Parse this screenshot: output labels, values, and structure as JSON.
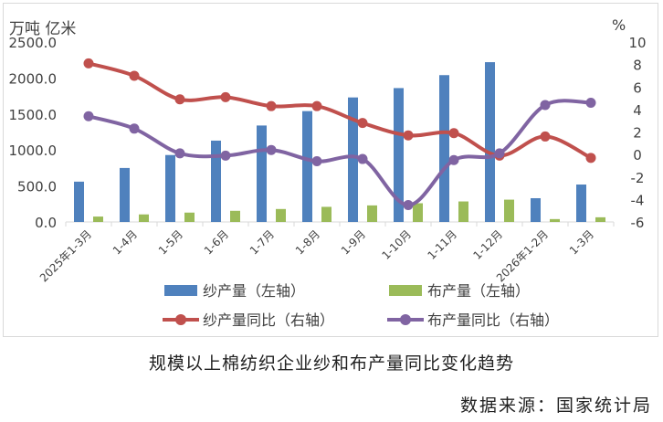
{
  "caption": "规模以上棉纺织企业纱和布产量同比变化趋势",
  "source": "数据来源：国家统计局",
  "chart_data": {
    "type": "bar+line",
    "categories": [
      "2025年1-3月",
      "1-4月",
      "1-5月",
      "1-6月",
      "1-7月",
      "1-8月",
      "1-9月",
      "1-10月",
      "1-11月",
      "1-12月",
      "2026年1-2月",
      "1-3月"
    ],
    "left_axis": {
      "unit_label": "万吨 亿米",
      "ylim": [
        0,
        2500
      ],
      "ticks": [
        "0.0",
        "500.0",
        "1000.0",
        "1500.0",
        "2000.0",
        "2500.0"
      ]
    },
    "right_axis": {
      "unit_label": "%",
      "ylim": [
        -6,
        10
      ],
      "ticks": [
        "-6",
        "-4",
        "-2",
        "0",
        "2",
        "4",
        "6",
        "8",
        "10"
      ]
    },
    "bar_series": [
      {
        "name": "纱产量（左轴）",
        "color": "#4f81bd",
        "values": [
          560,
          750,
          930,
          1130,
          1340,
          1540,
          1730,
          1860,
          2040,
          2220,
          330,
          520
        ]
      },
      {
        "name": "布产量（左轴）",
        "color": "#9bbb59",
        "values": [
          75,
          105,
          130,
          155,
          180,
          210,
          230,
          260,
          285,
          310,
          40,
          65
        ]
      }
    ],
    "line_series": [
      {
        "name": "纱产量同比（右轴）",
        "color": "#c0504d",
        "values": [
          8.1,
          7.0,
          4.9,
          5.1,
          4.3,
          4.3,
          2.8,
          1.7,
          1.9,
          -0.1,
          1.6,
          -0.3
        ]
      },
      {
        "name": "布产量同比（右轴）",
        "color": "#8064a2",
        "values": [
          3.4,
          2.3,
          0.1,
          -0.1,
          0.4,
          -0.6,
          -0.4,
          -4.5,
          -0.5,
          0.1,
          4.4,
          4.6
        ]
      }
    ],
    "grid": false,
    "legend_position": "bottom"
  }
}
